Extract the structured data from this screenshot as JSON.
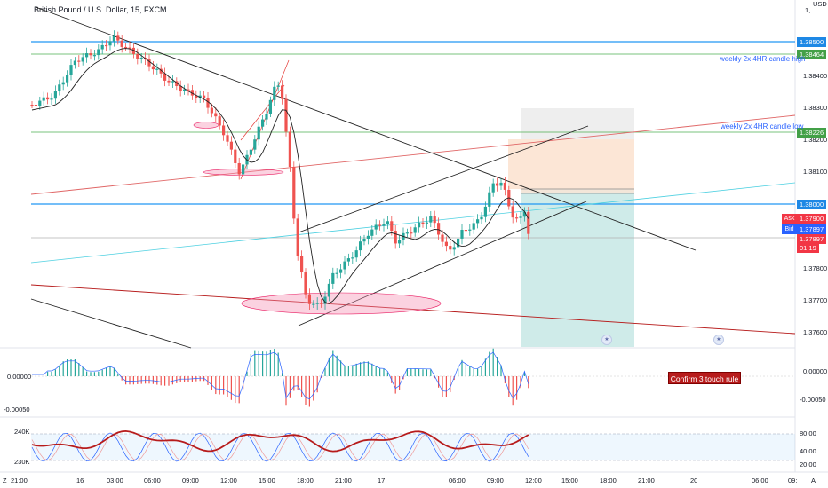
{
  "header": {
    "title": "British Pound / U.S. Dollar, 15, FXCM",
    "currency": "USD",
    "currency_value": "1,"
  },
  "price_axis": {
    "ticks": [
      "1.38400",
      "1.38300",
      "1.38200",
      "1.38100",
      "1.37800",
      "1.37700",
      "1.37600"
    ],
    "tag_1": "1.38500",
    "tag_2": "1.38464",
    "tag_3": "1.38226",
    "tag_4": "1.38000",
    "tag_ask": "1.37900",
    "tag_bid": "1.37897",
    "tag_last": "1.37897",
    "countdown": "01:19",
    "ask_label": "Ask",
    "bid_label": "Bid"
  },
  "annotations": {
    "weekly_high": "weekly 2x 4HR candle high",
    "weekly_low": "weekly 2x 4HR candle low",
    "callout": "Confirm 3 touch rule"
  },
  "macd": {
    "left_top": "0.00000",
    "left_bottom": "-0.00050",
    "right_top": "0.00000",
    "right_bottom": "-0.00050"
  },
  "stoch": {
    "left_top": "240K",
    "left_bottom": "230K",
    "right_1": "80.00",
    "right_2": "40.00",
    "right_3": "20.00"
  },
  "time_axis": [
    "21:00",
    "16",
    "03:00",
    "06:00",
    "09:00",
    "12:00",
    "15:00",
    "18:00",
    "21:00",
    "17",
    "06:00",
    "09:00",
    "12:00",
    "15:00",
    "18:00",
    "21:00",
    "20",
    "06:00",
    "09:"
  ],
  "time_axis_extra": "A",
  "time_axis_z": "Z",
  "colors": {
    "up": "#26a69a",
    "down": "#ef5350",
    "hline_blue": "#2196f3",
    "hline_green": "#4caf50",
    "tag_blue": "#1e88e5",
    "tag_green": "#43a047",
    "tag_red": "#f23645",
    "tag_navy": "#2962ff"
  }
}
